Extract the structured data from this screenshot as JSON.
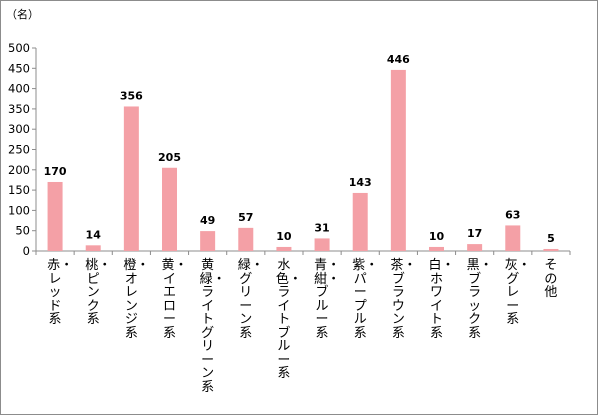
{
  "chart_data": {
    "type": "bar",
    "unit": "（名）",
    "categories": [
      "赤・レッド系",
      "桃・ピンク系",
      "橙・オレンジ系",
      "黄・イエロー系",
      "黄緑・ライトグリーン系",
      "緑・グリーン系",
      "水色・ライトブルー系",
      "青・紺・ブルー系",
      "紫・パープル系",
      "茶・ブラウン系",
      "白・ホワイト系",
      "黒・ブラック系",
      "灰・グレー系",
      "その他"
    ],
    "values": [
      170,
      14,
      356,
      205,
      49,
      57,
      10,
      31,
      143,
      446,
      10,
      17,
      63,
      5
    ],
    "ylim": [
      0,
      500
    ],
    "yticks": [
      0,
      50,
      100,
      150,
      200,
      250,
      300,
      350,
      400,
      450,
      500
    ],
    "grid": false,
    "legend": "none",
    "bar_color": "#f4a0a6"
  }
}
